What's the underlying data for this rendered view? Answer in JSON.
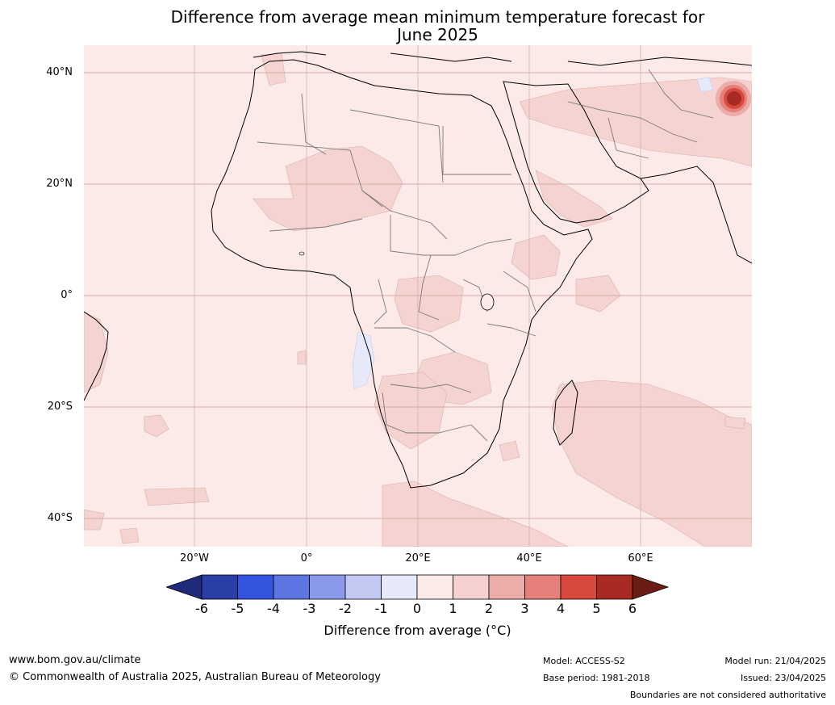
{
  "title": "Difference from average mean minimum temperature forecast for\nJune 2025",
  "map": {
    "ocean_color": "#fbeae8",
    "lat_labels": [
      "40°N",
      "20°N",
      "0°",
      "20°S",
      "40°S"
    ],
    "lon_labels": [
      "20°W",
      "0°",
      "20°E",
      "40°E",
      "60°E"
    ]
  },
  "colorbar": {
    "ticks": [
      "-6",
      "-5",
      "-4",
      "-3",
      "-2",
      "-1",
      "0",
      "1",
      "2",
      "3",
      "4",
      "5",
      "6"
    ],
    "colors": [
      "#2a3ea8",
      "#3454df",
      "#5c75e2",
      "#8a9ae8",
      "#c2c9f3",
      "#e6e9fa",
      "#fbeae8",
      "#f4d1ce",
      "#ecaca8",
      "#e5807a",
      "#d9483d",
      "#a82b23"
    ],
    "end_low": "#1f2b7a",
    "end_high": "#6b1d15",
    "label": "Difference from average (°C)"
  },
  "footer": {
    "website": "www.bom.gov.au/climate",
    "copyright": "© Commonwealth of Australia 2025, Australian Bureau of Meteorology",
    "model": "Model: ACCESS-S2",
    "base_period": "Base period: 1981-2018",
    "model_run": "Model run: 21/04/2025",
    "issued": "Issued: 23/04/2025",
    "disclaimer": "Boundaries are not considered authoritative"
  }
}
